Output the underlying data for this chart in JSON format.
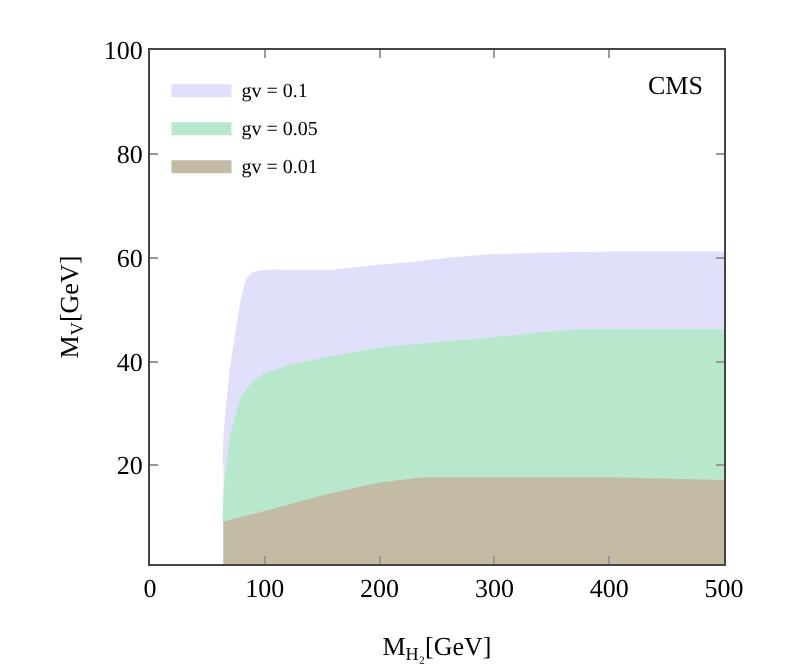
{
  "chart_data": {
    "type": "area",
    "xlabel": "M$_{H₂}$[GeV]",
    "ylabel": "M$_{V}$[GeV]",
    "annotations": [
      "CMS"
    ],
    "series": [
      {
        "name": "gv = 0.1",
        "color": "#e0e0fa",
        "x": [
          64,
          65,
          70,
          80,
          85,
          90,
          100,
          130,
          160,
          200,
          230,
          260,
          300,
          350,
          400,
          450,
          500
        ],
        "values": [
          20,
          26,
          38,
          52,
          56,
          57,
          57.5,
          57.5,
          57.5,
          58.5,
          59,
          59.8,
          60.5,
          60.8,
          61,
          61,
          61
        ]
      },
      {
        "name": "gv = 0.05",
        "color": "#b8e8cc",
        "x": [
          64,
          65,
          70,
          80,
          90,
          100,
          120,
          150,
          200,
          250,
          300,
          370,
          400,
          450,
          500
        ],
        "values": [
          9,
          15,
          25,
          33,
          36,
          37.5,
          39,
          40.5,
          42.5,
          43.5,
          44.5,
          46,
          46,
          46,
          46
        ]
      },
      {
        "name": "gv = 0.01",
        "color": "#c4bba4",
        "x": [
          64,
          100,
          150,
          200,
          240,
          300,
          400,
          500
        ],
        "values": [
          9,
          11,
          14,
          16.5,
          17.5,
          17.5,
          17.5,
          17
        ]
      }
    ],
    "xlim": [
      0,
      500
    ],
    "ylim": [
      1,
      100
    ],
    "xticks": [
      0,
      100,
      200,
      300,
      400,
      500
    ],
    "yticks": [
      20,
      40,
      60,
      80,
      100
    ],
    "grid": false,
    "legend": "top left"
  }
}
